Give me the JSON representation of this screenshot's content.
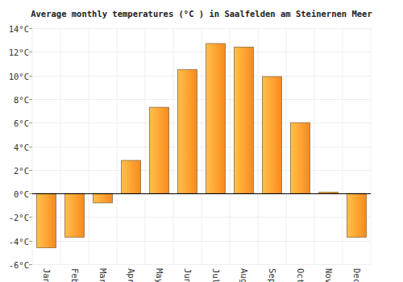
{
  "chart_data": {
    "type": "bar",
    "title": "Average monthly temperatures (°C ) in Saalfelden am Steinernen Meer",
    "categories": [
      "Jan",
      "Feb",
      "Mar",
      "Apr",
      "May",
      "Jun",
      "Jul",
      "Aug",
      "Sep",
      "Oct",
      "Nov",
      "Dec"
    ],
    "values": [
      -4.6,
      -3.7,
      -0.8,
      2.8,
      7.3,
      10.5,
      12.7,
      12.4,
      9.9,
      6.0,
      0.1,
      -3.7
    ],
    "color": "#ffa533",
    "ylim": [
      -6,
      14
    ],
    "yticks": [
      {
        "value": -6,
        "label": "-6°C"
      },
      {
        "value": -4,
        "label": "-4°C"
      },
      {
        "value": -2,
        "label": "-2°C"
      },
      {
        "value": 0,
        "label": "0°C"
      },
      {
        "value": 2,
        "label": "2°C"
      },
      {
        "value": 4,
        "label": "4°C"
      },
      {
        "value": 6,
        "label": "6°C"
      },
      {
        "value": 8,
        "label": "8°C"
      },
      {
        "value": 10,
        "label": "10°C"
      },
      {
        "value": 12,
        "label": "12°C"
      },
      {
        "value": 14,
        "label": "14°C"
      }
    ],
    "grid": true
  }
}
